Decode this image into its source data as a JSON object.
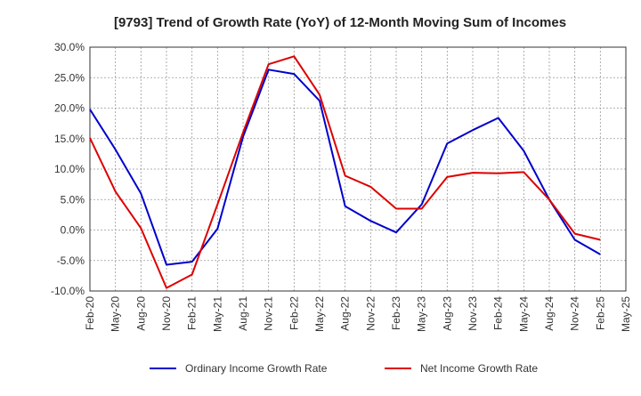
{
  "chart_data": {
    "type": "line",
    "title": "[9793]  Trend of Growth Rate (YoY) of 12-Month Moving Sum of Incomes",
    "xlabel": "",
    "ylabel": "",
    "ylim": [
      -10,
      30
    ],
    "grid": true,
    "legend_position": "bottom",
    "x": [
      "Feb-20",
      "May-20",
      "Aug-20",
      "Nov-20",
      "Feb-21",
      "May-21",
      "Aug-21",
      "Nov-21",
      "Feb-22",
      "May-22",
      "Aug-22",
      "Nov-22",
      "Feb-23",
      "May-23",
      "Aug-23",
      "Nov-23",
      "Feb-24",
      "May-24",
      "Aug-24",
      "Nov-24",
      "Feb-25",
      "May-25"
    ],
    "y_ticks": [
      "30.0%",
      "25.0%",
      "20.0%",
      "15.0%",
      "10.0%",
      "5.0%",
      "0.0%",
      "-5.0%",
      "-10.0%"
    ],
    "y_tick_values": [
      30,
      25,
      20,
      15,
      10,
      5,
      0,
      -5,
      -10
    ],
    "series": [
      {
        "name": "Ordinary Income Growth Rate",
        "color": "#0000cc",
        "values": [
          19.8,
          13.2,
          6.0,
          -5.7,
          -5.2,
          0.2,
          15.3,
          26.3,
          25.6,
          21.2,
          3.9,
          1.5,
          -0.4,
          4.2,
          14.2,
          16.4,
          18.4,
          13.0,
          5.0,
          -1.6,
          -4.0,
          null
        ]
      },
      {
        "name": "Net Income Growth Rate",
        "color": "#dd0000",
        "values": [
          15.1,
          6.3,
          0.3,
          -9.5,
          -7.3,
          4.2,
          16.0,
          27.2,
          28.5,
          22.2,
          8.9,
          7.1,
          3.5,
          3.5,
          8.7,
          9.4,
          9.3,
          9.5,
          5.0,
          -0.6,
          -1.6,
          null
        ]
      }
    ]
  }
}
